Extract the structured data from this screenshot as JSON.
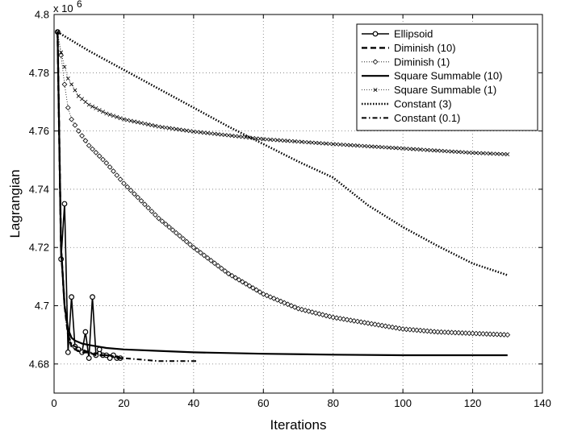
{
  "chart_data": {
    "type": "line",
    "title": "",
    "xlabel": "Iterations",
    "ylabel": "Lagrangian",
    "y_multiplier_label": "x 10",
    "y_multiplier_exponent": "6",
    "xlim": [
      0,
      140
    ],
    "ylim": [
      4.67,
      4.8
    ],
    "x_ticks": [
      0,
      20,
      40,
      60,
      80,
      100,
      120,
      140
    ],
    "y_ticks": [
      4.68,
      4.7,
      4.72,
      4.74,
      4.76,
      4.78,
      4.8
    ],
    "y_tick_labels": [
      "4.68",
      "4.7",
      "4.72",
      "4.74",
      "4.76",
      "4.78",
      "4.8"
    ],
    "grid": true,
    "legend_position": "top-right",
    "series": [
      {
        "name": "Ellipsoid",
        "style": "solid-circles",
        "x": [
          1,
          2,
          3,
          4,
          5,
          6,
          7,
          8,
          9,
          10,
          11,
          12,
          13,
          14,
          15,
          16,
          17,
          18,
          19
        ],
        "y": [
          4.794,
          4.716,
          4.735,
          4.684,
          4.703,
          4.686,
          4.685,
          4.684,
          4.691,
          4.682,
          4.703,
          4.683,
          4.685,
          4.683,
          4.683,
          4.682,
          4.683,
          4.682,
          4.682
        ]
      },
      {
        "name": "Diminish (10)",
        "style": "dashed",
        "x": [
          1,
          2,
          3,
          4,
          5,
          6,
          8,
          10,
          12,
          14,
          16,
          18,
          20
        ],
        "y": [
          4.794,
          4.72,
          4.7,
          4.69,
          4.686,
          4.685,
          4.684,
          4.684,
          4.683,
          4.683,
          4.683,
          4.682,
          4.682
        ]
      },
      {
        "name": "Diminish (1)",
        "style": "diamonds",
        "x": [
          1,
          2,
          3,
          4,
          5,
          7,
          10,
          15,
          20,
          25,
          30,
          40,
          50,
          60,
          70,
          80,
          90,
          100,
          110,
          120,
          130
        ],
        "y": [
          4.794,
          4.786,
          4.776,
          4.768,
          4.764,
          4.76,
          4.755,
          4.749,
          4.742,
          4.736,
          4.73,
          4.72,
          4.711,
          4.704,
          4.699,
          4.696,
          4.694,
          4.692,
          4.691,
          4.6905,
          4.69
        ]
      },
      {
        "name": "Square Summable (10)",
        "style": "solid",
        "x": [
          1,
          2,
          3,
          4,
          5,
          6,
          8,
          10,
          15,
          20,
          30,
          40,
          60,
          80,
          100,
          130
        ],
        "y": [
          4.794,
          4.72,
          4.7,
          4.692,
          4.689,
          4.688,
          4.687,
          4.6865,
          4.6855,
          4.685,
          4.6845,
          4.684,
          4.6835,
          4.6832,
          4.683,
          4.683
        ]
      },
      {
        "name": "Square Summable (1)",
        "style": "crosses",
        "x": [
          1,
          2,
          3,
          4,
          5,
          7,
          10,
          15,
          20,
          30,
          40,
          50,
          60,
          80,
          100,
          120,
          130
        ],
        "y": [
          4.794,
          4.787,
          4.782,
          4.778,
          4.776,
          4.772,
          4.769,
          4.766,
          4.764,
          4.7615,
          4.7598,
          4.7585,
          4.7572,
          4.7555,
          4.754,
          4.7525,
          4.752
        ]
      },
      {
        "name": "Constant (3)",
        "style": "dotted-thick",
        "x": [
          1,
          10,
          20,
          30,
          40,
          50,
          60,
          70,
          80,
          90,
          100,
          110,
          120,
          130
        ],
        "y": [
          4.794,
          4.7875,
          4.781,
          4.7745,
          4.768,
          4.7615,
          4.7555,
          4.7495,
          4.744,
          4.7345,
          4.727,
          4.7205,
          4.7145,
          4.7105
        ]
      },
      {
        "name": "Constant (0.1)",
        "style": "dash-dot",
        "x": [
          1,
          2,
          3,
          4,
          5,
          6,
          8,
          10,
          15,
          20,
          25,
          30,
          35,
          40,
          41
        ],
        "y": [
          4.794,
          4.72,
          4.7,
          4.69,
          4.687,
          4.686,
          4.685,
          4.684,
          4.683,
          4.682,
          4.6815,
          4.681,
          4.681,
          4.681,
          4.681
        ]
      }
    ]
  }
}
